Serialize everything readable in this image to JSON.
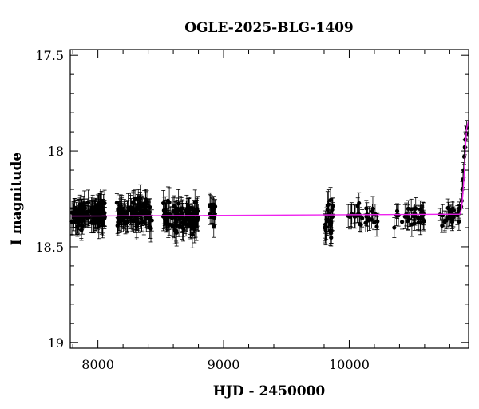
{
  "chart_data": {
    "type": "scatter",
    "title": "OGLE-2025-BLG-1409",
    "xlabel": "HJD - 2450000",
    "ylabel": "I magnitude",
    "xlim": [
      7780,
      10950
    ],
    "ylim": [
      19.03,
      17.47
    ],
    "y_inverted": true,
    "x_ticks": [
      8000,
      9000,
      10000
    ],
    "x_tick_labels": [
      "8000",
      "9000",
      "10000"
    ],
    "y_ticks": [
      17.5,
      18,
      18.5,
      19
    ],
    "y_tick_labels": [
      "17.5",
      "18",
      "18.5",
      "19"
    ],
    "grid": false,
    "legend": "none",
    "colors": {
      "data": "#000000",
      "model": "#ee22ee",
      "frame": "#000000"
    },
    "model": {
      "baseline_mag": 18.34,
      "x": [
        7780,
        10880,
        10895,
        10905,
        10915,
        10925,
        10935,
        10950
      ],
      "y": [
        18.34,
        18.33,
        18.3,
        18.22,
        18.12,
        17.98,
        17.88,
        17.84
      ]
    },
    "seasons": [
      {
        "start": 7790,
        "end": 8060,
        "mean": 18.33,
        "scatter": 0.055,
        "err": 0.055,
        "n": 120
      },
      {
        "start": 8150,
        "end": 8430,
        "mean": 18.33,
        "scatter": 0.06,
        "err": 0.06,
        "n": 110
      },
      {
        "start": 8520,
        "end": 8800,
        "mean": 18.35,
        "scatter": 0.06,
        "err": 0.06,
        "n": 115
      },
      {
        "start": 8890,
        "end": 8940,
        "mean": 18.32,
        "scatter": 0.05,
        "err": 0.05,
        "n": 14
      },
      {
        "start": 9805,
        "end": 9870,
        "mean": 18.36,
        "scatter": 0.08,
        "err": 0.06,
        "n": 28
      },
      {
        "start": 9990,
        "end": 10230,
        "mean": 18.33,
        "scatter": 0.05,
        "err": 0.05,
        "n": 30
      },
      {
        "start": 10350,
        "end": 10600,
        "mean": 18.34,
        "scatter": 0.05,
        "err": 0.05,
        "n": 32
      },
      {
        "start": 10720,
        "end": 10880,
        "mean": 18.33,
        "scatter": 0.045,
        "err": 0.045,
        "n": 26
      }
    ],
    "rise_points": [
      {
        "x": 10890,
        "y": 18.29,
        "err": 0.04
      },
      {
        "x": 10895,
        "y": 18.26,
        "err": 0.04
      },
      {
        "x": 10900,
        "y": 18.2,
        "err": 0.04
      },
      {
        "x": 10905,
        "y": 18.15,
        "err": 0.04
      },
      {
        "x": 10910,
        "y": 18.1,
        "err": 0.04
      },
      {
        "x": 10915,
        "y": 18.03,
        "err": 0.04
      },
      {
        "x": 10920,
        "y": 17.98,
        "err": 0.04
      },
      {
        "x": 10925,
        "y": 17.94,
        "err": 0.04
      },
      {
        "x": 10930,
        "y": 17.91,
        "err": 0.04
      },
      {
        "x": 10935,
        "y": 17.88,
        "err": 0.04
      }
    ]
  }
}
